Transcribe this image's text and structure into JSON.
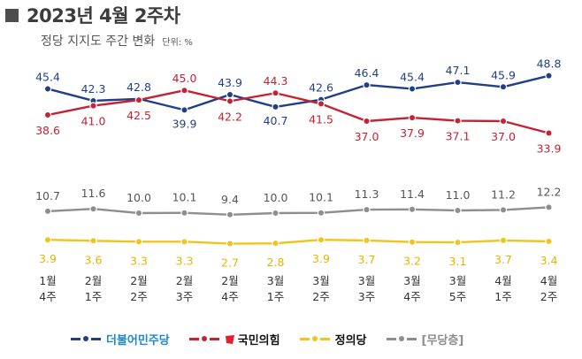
{
  "title": "2023년 4월 2주차",
  "subtitle": "정당 지지도 주간 변화",
  "unit": "단위: %",
  "colors": {
    "democratic": "#1f3f87",
    "ppp": "#c52233",
    "justice": "#f0c419",
    "independent": "#8e8e8e"
  },
  "legend": {
    "democratic": "더불어민주당",
    "ppp": "국민의힘",
    "justice": "정의당",
    "independent": "[무당층]"
  },
  "chart_data": {
    "type": "line",
    "title": "2023년 4월 2주차",
    "subtitle": "정당 지지도 주간 변화",
    "unit": "단위: %",
    "x": [
      {
        "month": "1월",
        "week": "4주"
      },
      {
        "month": "2월",
        "week": "1주"
      },
      {
        "month": "2월",
        "week": "2주"
      },
      {
        "month": "2월",
        "week": "3주"
      },
      {
        "month": "2월",
        "week": "4주"
      },
      {
        "month": "3월",
        "week": "1주"
      },
      {
        "month": "3월",
        "week": "2주"
      },
      {
        "month": "3월",
        "week": "3주"
      },
      {
        "month": "3월",
        "week": "4주"
      },
      {
        "month": "3월",
        "week": "5주"
      },
      {
        "month": "4월",
        "week": "1주"
      },
      {
        "month": "4월",
        "week": "2주"
      }
    ],
    "series": [
      {
        "key": "democratic",
        "name": "더불어민주당",
        "values": [
          45.4,
          42.3,
          42.8,
          39.9,
          43.9,
          40.7,
          42.6,
          46.4,
          45.4,
          47.1,
          45.9,
          48.8
        ]
      },
      {
        "key": "ppp",
        "name": "국민의힘",
        "values": [
          38.6,
          41.0,
          42.5,
          45.0,
          42.2,
          44.3,
          41.5,
          37.0,
          37.9,
          37.1,
          37.0,
          33.9
        ]
      },
      {
        "key": "independent",
        "name": "[무당층]",
        "values": [
          10.7,
          11.6,
          10.0,
          10.1,
          9.4,
          10.0,
          10.1,
          11.3,
          11.4,
          11.0,
          11.2,
          12.2
        ]
      },
      {
        "key": "justice",
        "name": "정의당",
        "values": [
          3.9,
          3.6,
          3.3,
          3.3,
          2.7,
          2.8,
          3.9,
          3.7,
          3.2,
          3.1,
          3.7,
          3.4
        ]
      }
    ],
    "legend_position": "bottom",
    "grid": false
  }
}
